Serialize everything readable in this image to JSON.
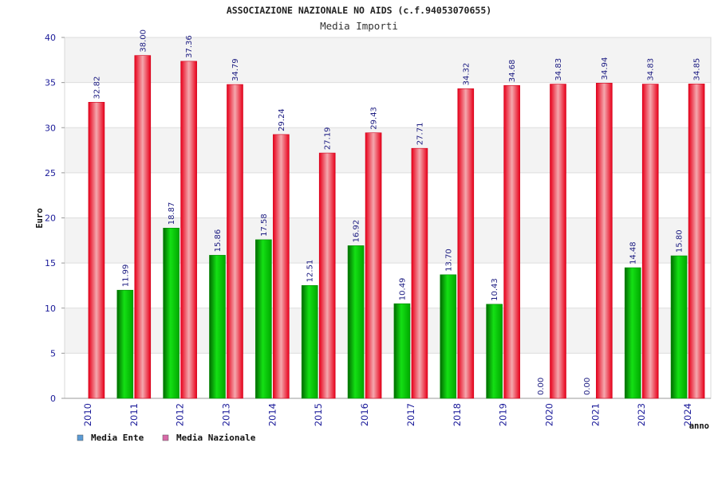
{
  "chart_data": {
    "type": "bar",
    "title": "ASSOCIAZIONE NAZIONALE NO AIDS (c.f.94053070655)",
    "subtitle": "Media Importi",
    "xlabel": "anno",
    "ylabel": "Euro",
    "ylim": [
      0,
      40
    ],
    "yticks": [
      0,
      5,
      10,
      15,
      20,
      25,
      30,
      35,
      40
    ],
    "grid": true,
    "legend_position": "bottom-left",
    "categories": [
      "2010",
      "2011",
      "2012",
      "2013",
      "2014",
      "2015",
      "2016",
      "2017",
      "2018",
      "2019",
      "2020",
      "2021",
      "2023",
      "2024"
    ],
    "series": [
      {
        "name": "Media Ente",
        "legend_color": "#5b9bd5",
        "bar_color": "#00c000",
        "values": [
          null,
          11.99,
          18.87,
          15.86,
          17.58,
          12.51,
          16.92,
          10.49,
          13.7,
          10.43,
          0.0,
          0.0,
          14.48,
          15.8
        ],
        "labels": [
          "",
          "11.99",
          "18.87",
          "15.86",
          "17.58",
          "12.51",
          "16.92",
          "10.49",
          "13.70",
          "10.43",
          "0.00",
          "0.00",
          "14.48",
          "15.80"
        ]
      },
      {
        "name": "Media Nazionale",
        "legend_color": "#d86aa8",
        "bar_color": "#ee1c2e",
        "values": [
          32.82,
          38.0,
          37.36,
          34.79,
          29.24,
          27.19,
          29.43,
          27.71,
          34.32,
          34.68,
          34.83,
          34.94,
          34.83,
          34.85
        ],
        "labels": [
          "32.82",
          "38.00",
          "37.36",
          "34.79",
          "29.24",
          "27.19",
          "29.43",
          "27.71",
          "34.32",
          "34.68",
          "34.83",
          "34.94",
          "34.83",
          "34.85"
        ]
      }
    ]
  }
}
